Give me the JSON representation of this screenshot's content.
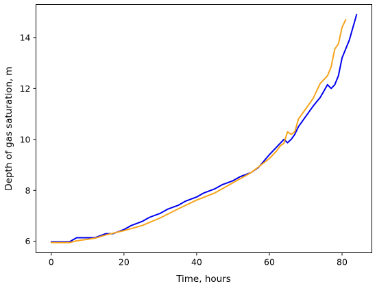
{
  "chart_data": {
    "type": "line",
    "title": "",
    "xlabel": "Time, hours",
    "ylabel": "Depth of gas saturation, m",
    "xlim": [
      -4.2,
      88.2
    ],
    "ylim": [
      5.55,
      15.3
    ],
    "xticks": [
      0,
      20,
      40,
      60,
      80
    ],
    "yticks": [
      6,
      8,
      10,
      12,
      14
    ],
    "xtick_labels": [
      "0",
      "20",
      "40",
      "60",
      "80"
    ],
    "ytick_labels": [
      "6",
      "8",
      "10",
      "12",
      "14"
    ],
    "grid": false,
    "series": [
      {
        "color": "#0000ee",
        "x": [
          0,
          5,
          7,
          12,
          15,
          17,
          20,
          22,
          25,
          27,
          30,
          32,
          35,
          37,
          40,
          42,
          45,
          47,
          50,
          52,
          55,
          57,
          60,
          62,
          64,
          65,
          66,
          67,
          68,
          70,
          72,
          74,
          75,
          76,
          77,
          78,
          79,
          80,
          82,
          84
        ],
        "y": [
          5.98,
          5.98,
          6.14,
          6.14,
          6.3,
          6.3,
          6.46,
          6.62,
          6.78,
          6.94,
          7.1,
          7.26,
          7.42,
          7.58,
          7.74,
          7.9,
          8.06,
          8.22,
          8.38,
          8.54,
          8.7,
          8.9,
          9.4,
          9.7,
          10.0,
          9.87,
          10.0,
          10.2,
          10.5,
          10.9,
          11.3,
          11.65,
          11.9,
          12.15,
          12.0,
          12.15,
          12.5,
          13.2,
          13.9,
          14.9
        ]
      },
      {
        "color": "#f5a31a",
        "x": [
          0,
          5,
          7,
          12,
          15,
          20,
          25,
          30,
          35,
          40,
          45,
          50,
          55,
          60,
          62,
          63,
          64,
          65,
          66,
          67,
          68,
          69,
          70,
          72,
          74,
          76,
          77,
          78,
          79,
          80,
          81
        ],
        "y": [
          5.95,
          5.95,
          6.02,
          6.12,
          6.25,
          6.42,
          6.62,
          6.92,
          7.28,
          7.62,
          7.9,
          8.3,
          8.7,
          9.25,
          9.55,
          9.75,
          9.85,
          10.3,
          10.2,
          10.3,
          10.8,
          11.0,
          11.2,
          11.6,
          12.2,
          12.5,
          12.85,
          13.55,
          13.75,
          14.4,
          14.7
        ]
      }
    ]
  }
}
